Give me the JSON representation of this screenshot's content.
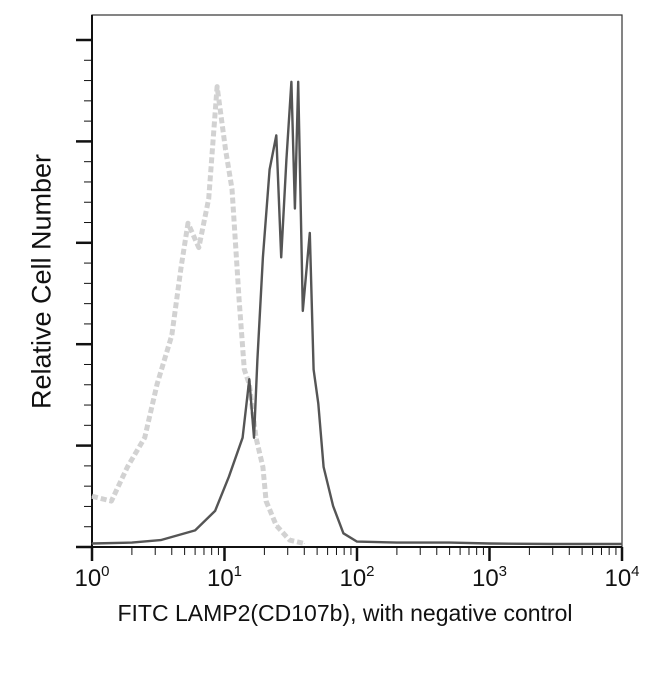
{
  "chart_data": {
    "type": "line",
    "xlabel": "FITC LAMP2(CD107b), with negative control",
    "ylabel": "Relative Cell Number",
    "x_scale": "log",
    "xlim": [
      1,
      10000
    ],
    "ylim": [
      0,
      105
    ],
    "x_ticks": [
      {
        "base": "10",
        "exp": "0"
      },
      {
        "base": "10",
        "exp": "1"
      },
      {
        "base": "10",
        "exp": "2"
      },
      {
        "base": "10",
        "exp": "3"
      },
      {
        "base": "10",
        "exp": "4"
      }
    ],
    "y_tick_labels": "none",
    "grid": false,
    "series": [
      {
        "role": "negative control",
        "color": "#d2d2d2",
        "style": "dashed",
        "x": [
          1.0,
          1.4,
          1.85,
          2.5,
          3.1,
          4.0,
          4.7,
          5.3,
          6.4,
          7.6,
          8.8,
          10.2,
          11.4,
          12.9,
          14.1,
          15.4,
          17.3,
          19.5,
          20.6,
          24.6,
          31,
          40
        ],
        "y": [
          10,
          9,
          16,
          22,
          33,
          43,
          57,
          66,
          61,
          71,
          94,
          81,
          73,
          50,
          36,
          33,
          22,
          16,
          9,
          4,
          1,
          0.3
        ]
      },
      {
        "role": "sample",
        "color": "#555555",
        "style": "solid",
        "x": [
          1.0,
          2,
          3.3,
          6,
          8.5,
          10.8,
          13.7,
          15.4,
          16.7,
          17.7,
          19.5,
          21.9,
          24.6,
          26.8,
          29.3,
          32,
          34,
          36,
          39,
          44,
          47,
          51,
          56,
          66,
          79,
          100,
          200,
          500,
          1000,
          3000,
          10000
        ],
        "y": [
          0.3,
          0.5,
          1,
          3,
          7,
          14,
          22,
          34,
          22,
          38,
          59,
          77,
          84,
          59,
          79,
          95,
          69,
          95,
          48,
          64,
          36,
          29,
          16,
          8,
          2.4,
          0.7,
          0.5,
          0.5,
          0.3,
          0.2,
          0.2
        ]
      }
    ]
  }
}
